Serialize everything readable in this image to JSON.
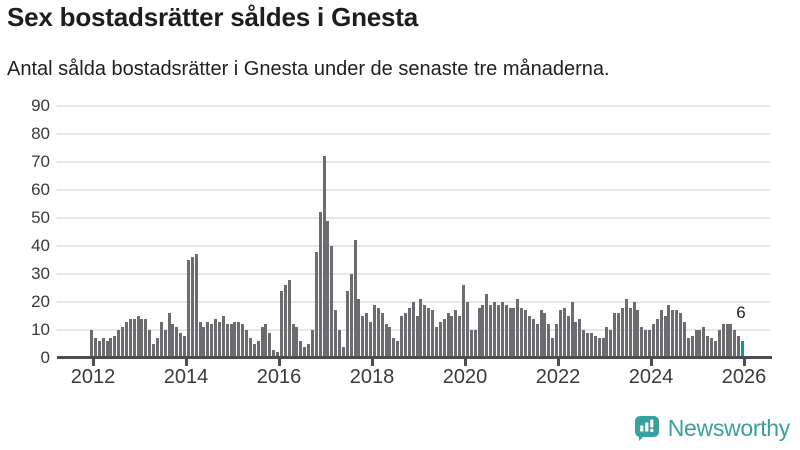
{
  "header": {
    "title": "Sex bostadsrätter såldes i Gnesta",
    "subtitle": "Antal sålda bostadsrätter i Gnesta under de senaste tre månaderna."
  },
  "chart_data": {
    "type": "bar",
    "title": "Sex bostadsrätter såldes i Gnesta",
    "subtitle": "Antal sålda bostadsrätter i Gnesta under de senaste tre månaderna.",
    "frequency": "monthly",
    "start": "2012-01",
    "end": "2026-01",
    "x_tick_labels": [
      "2012",
      "2014",
      "2016",
      "2018",
      "2020",
      "2022",
      "2024",
      "2026"
    ],
    "y_ticks": [
      0,
      10,
      20,
      30,
      40,
      50,
      60,
      70,
      80,
      90
    ],
    "ylim": [
      0,
      90
    ],
    "grid": true,
    "bar_color": "#6c6b70",
    "highlight_color": "#00a099",
    "latest_value": 6,
    "latest_label": "6",
    "values": [
      10,
      7,
      6,
      7,
      6,
      7,
      8,
      10,
      11,
      13,
      14,
      14,
      15,
      14,
      14,
      10,
      5,
      7,
      13,
      10,
      16,
      12,
      11,
      9,
      8,
      35,
      36,
      37,
      13,
      11,
      13,
      12,
      14,
      13,
      15,
      12,
      12,
      13,
      13,
      12,
      10,
      7,
      5,
      6,
      11,
      12,
      9,
      3,
      2,
      24,
      26,
      28,
      12,
      11,
      6,
      4,
      5,
      10,
      38,
      52,
      72,
      49,
      40,
      17,
      10,
      4,
      24,
      30,
      42,
      21,
      15,
      16,
      13,
      19,
      18,
      16,
      12,
      11,
      7,
      6,
      15,
      16,
      18,
      20,
      15,
      21,
      19,
      18,
      17,
      11,
      13,
      14,
      16,
      15,
      17,
      15,
      26,
      20,
      10,
      10,
      18,
      19,
      23,
      19,
      20,
      19,
      20,
      19,
      18,
      18,
      21,
      18,
      17,
      15,
      14,
      12,
      17,
      16,
      12,
      7,
      12,
      17,
      18,
      15,
      20,
      13,
      14,
      10,
      9,
      9,
      8,
      7,
      7,
      11,
      10,
      16,
      16,
      18,
      21,
      18,
      20,
      17,
      11,
      10,
      10,
      12,
      14,
      17,
      15,
      19,
      17,
      17,
      16,
      13,
      7,
      8,
      10,
      10,
      11,
      8,
      7,
      6,
      10,
      12,
      12,
      12,
      10,
      8,
      6
    ]
  },
  "branding": {
    "logo_text": "Newsworthy",
    "logo_color": "#38a09e"
  }
}
